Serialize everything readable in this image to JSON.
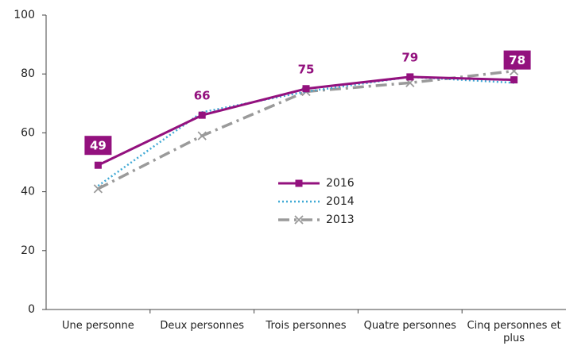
{
  "chart_data": {
    "type": "line",
    "categories": [
      "Une personne",
      "Deux personnes",
      "Trois personnes",
      "Quatre personnes",
      "Cinq personnes et plus"
    ],
    "series": [
      {
        "name": "2016",
        "color": "#93117e",
        "values": [
          49,
          66,
          75,
          79,
          78
        ]
      },
      {
        "name": "2014",
        "color": "#3fa9d5",
        "values": [
          42,
          67,
          74,
          79,
          77
        ]
      },
      {
        "name": "2013",
        "color": "#9a9a9a",
        "values": [
          41,
          59,
          74,
          77,
          81
        ]
      }
    ],
    "ylim": [
      0,
      100
    ],
    "yticks": [
      0,
      20,
      40,
      60,
      80,
      100
    ]
  }
}
